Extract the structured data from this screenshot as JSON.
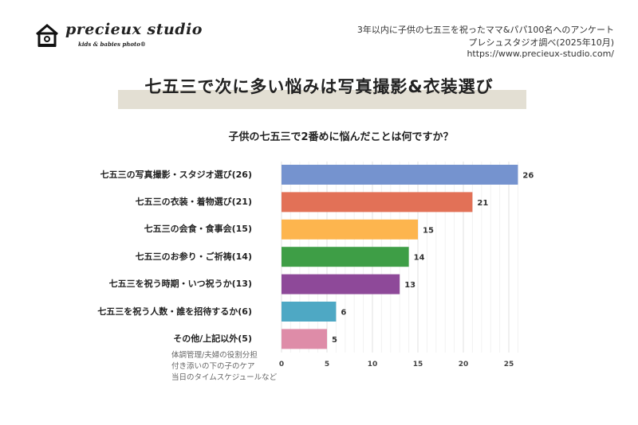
{
  "brand": {
    "name": "precieux studio",
    "tagline": "kids & babies photo®"
  },
  "source": {
    "line1": "3年以内に子供の七五三を祝ったママ&パパ100名へのアンケート",
    "line2": "プレシュスタジオ調べ(2025年10月)",
    "url": "https://www.precieux-studio.com/"
  },
  "chart_data": {
    "type": "bar",
    "orientation": "horizontal",
    "title": "七五三で次に多い悩みは写真撮影&衣装選び",
    "subtitle": "子供の七五三で2番めに悩んだことは何ですか？",
    "categories": [
      "七五三の写真撮影・スタジオ選び(26)",
      "七五三の衣装・着物選び(21)",
      "七五三の会食・食事会(15)",
      "七五三のお参り・ご祈祷(14)",
      "七五三を祝う時期・いつ祝うか(13)",
      "七五三を祝う人数・誰を招待するか(6)",
      "その他/上記以外(5)"
    ],
    "values": [
      26,
      21,
      15,
      14,
      13,
      6,
      5
    ],
    "colors": [
      "#7593cf",
      "#e27157",
      "#fdb54e",
      "#3e9e46",
      "#8e4999",
      "#4ea8c4",
      "#de8ca8"
    ],
    "xlim": [
      0,
      26
    ],
    "xticks": [
      "0",
      "5",
      "10",
      "15",
      "20",
      "25"
    ],
    "grid": true,
    "annotation": [
      "体調管理/夫婦の役割分担",
      "付き添いの下の子のケア",
      "当日のタイムスケジュールなど"
    ]
  }
}
